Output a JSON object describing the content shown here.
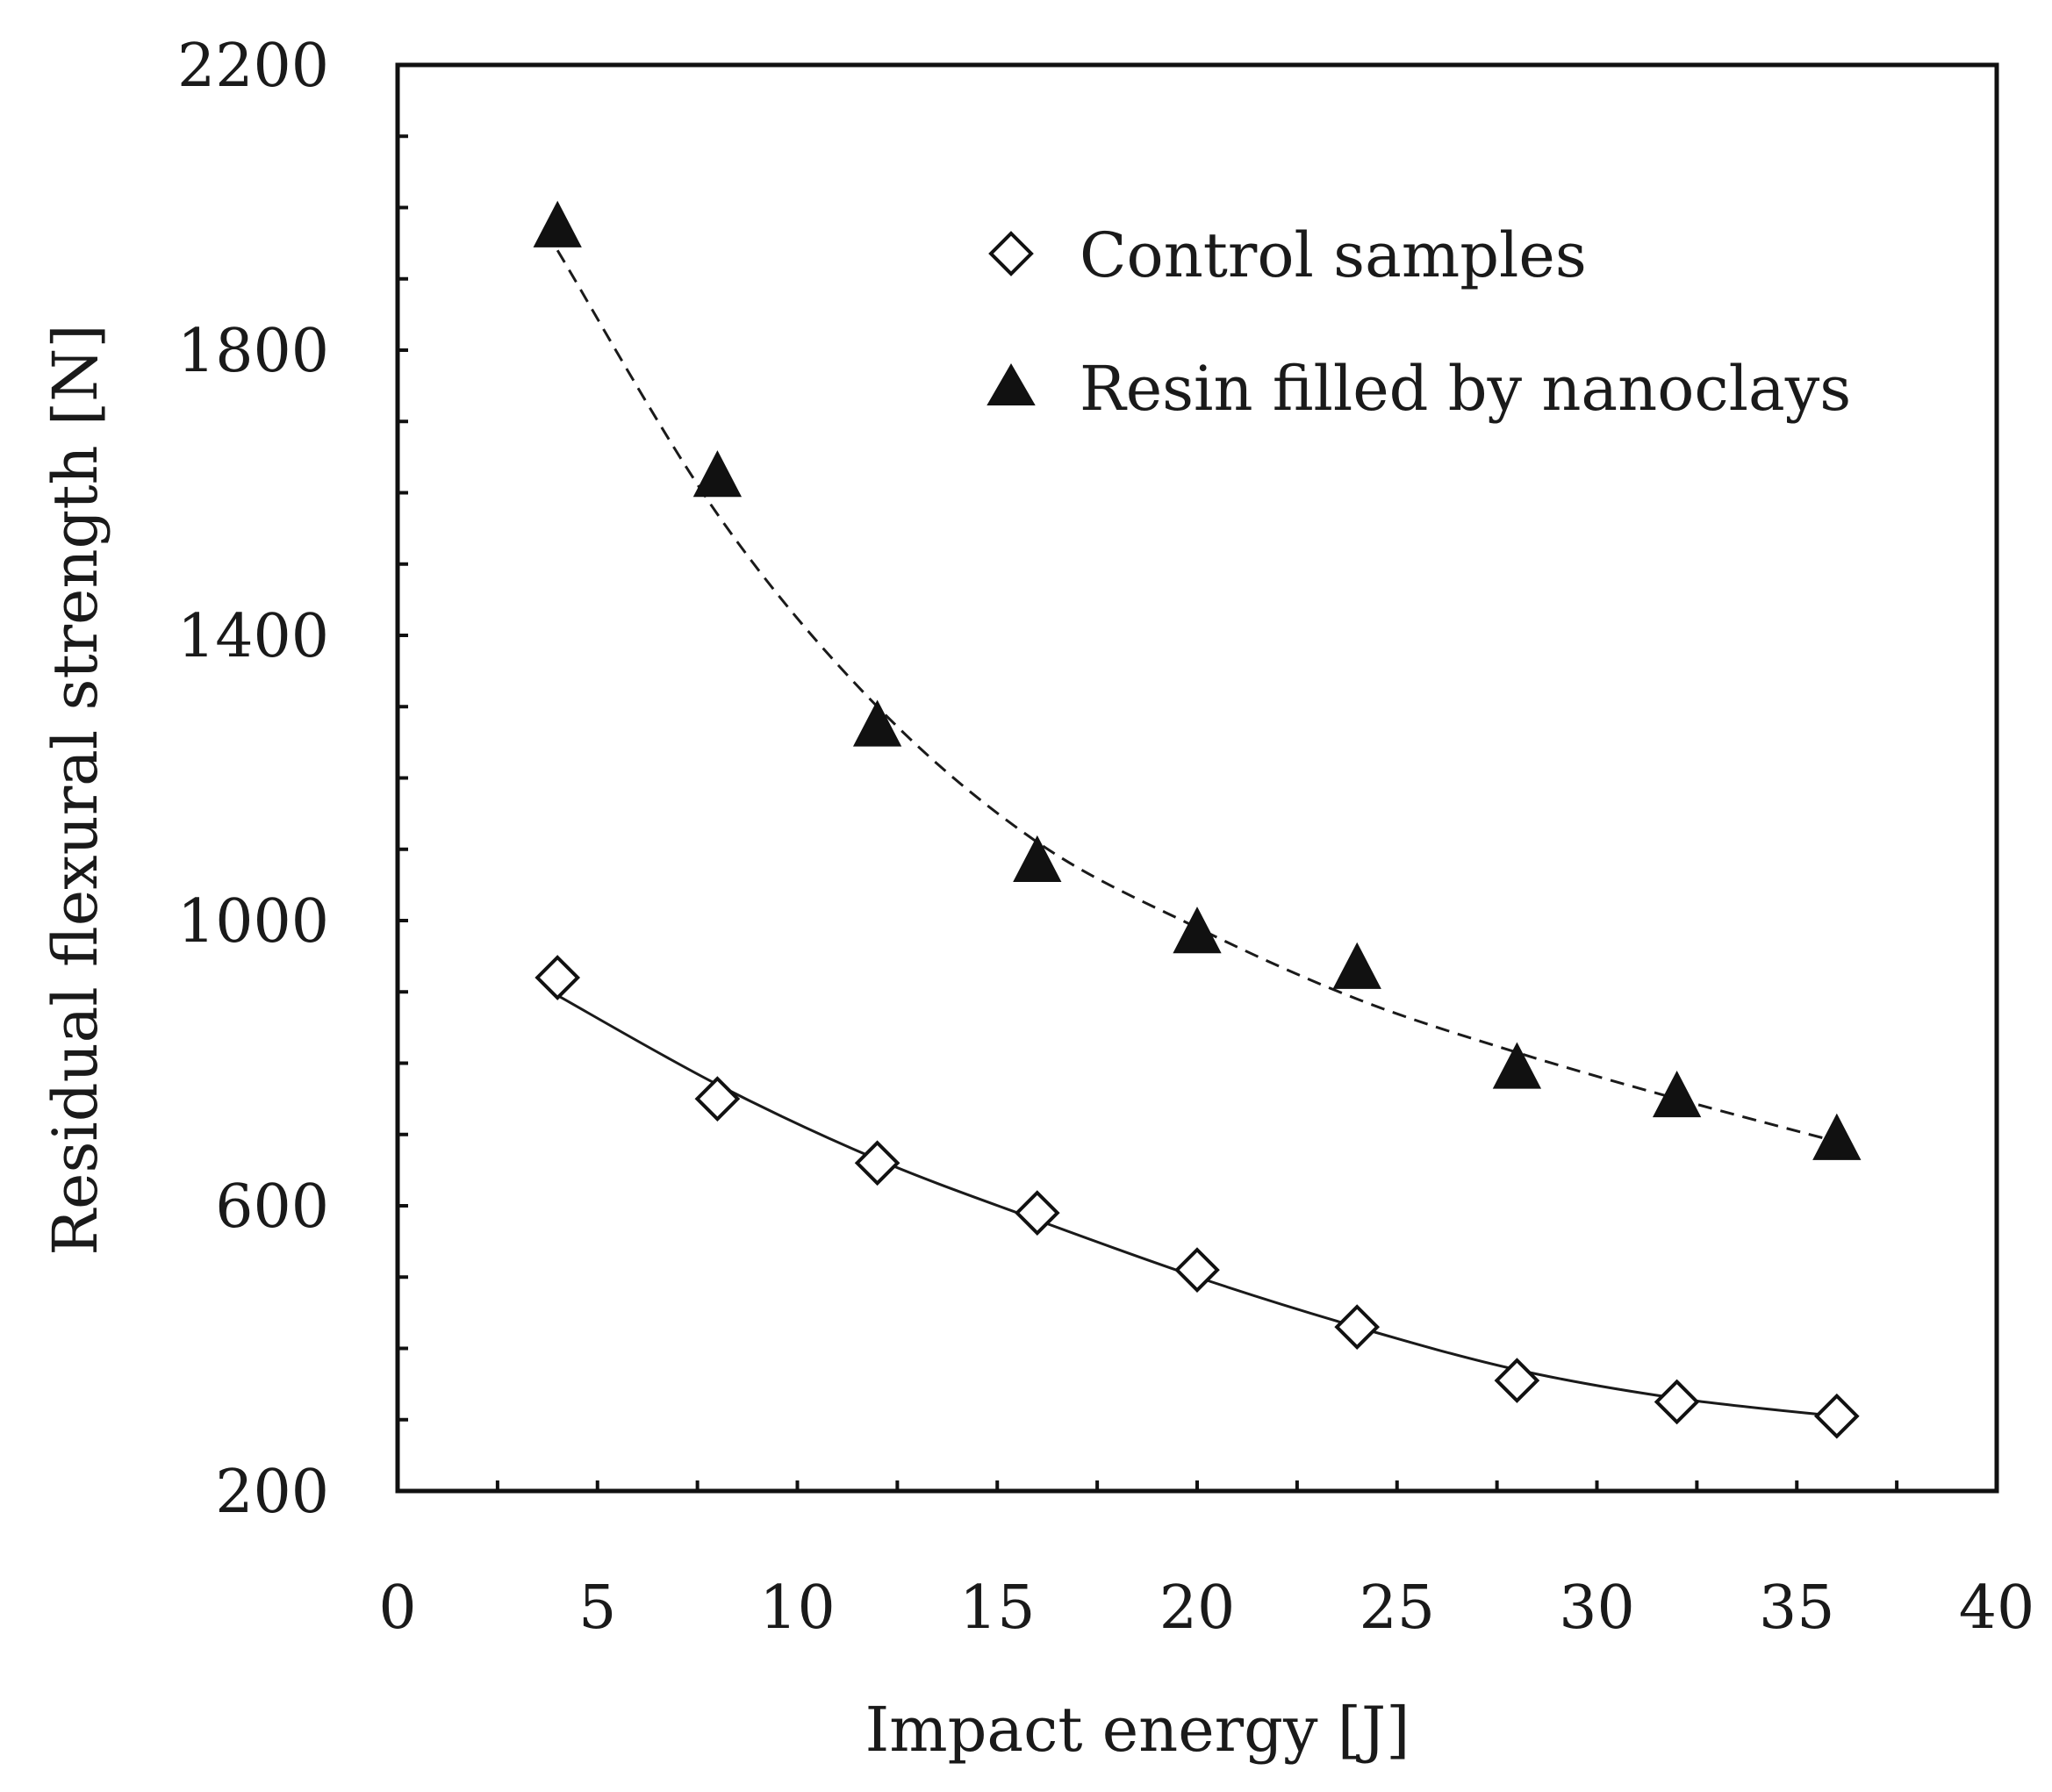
{
  "chart_data": {
    "type": "scatter",
    "xlabel": "Impact energy [J]",
    "ylabel": "Residual flexural strength [N]",
    "xlim": [
      0,
      40
    ],
    "ylim": [
      200,
      2200
    ],
    "x_ticks": [
      0,
      5,
      10,
      15,
      20,
      25,
      30,
      35,
      40
    ],
    "y_ticks": [
      200,
      600,
      1000,
      1400,
      1800,
      2200
    ],
    "x_tick_labels": [
      "0",
      "5",
      "10",
      "15",
      "20",
      "25",
      "30",
      "35",
      "40"
    ],
    "y_tick_labels": [
      "200",
      "600",
      "1000",
      "1400",
      "1800",
      "2200"
    ],
    "grid": false,
    "legend_position": "top-right",
    "series": [
      {
        "name": "Control samples",
        "marker": "open-diamond",
        "line_style": "solid",
        "x": [
          4,
          8,
          12,
          16,
          20,
          24,
          28,
          32,
          36
        ],
        "values": [
          920,
          750,
          660,
          590,
          510,
          430,
          355,
          325,
          305
        ],
        "fit_x": [
          4,
          8,
          12,
          16,
          20,
          24,
          28,
          32,
          36
        ],
        "fit_values": [
          895,
          770,
          665,
          580,
          500,
          430,
          370,
          330,
          305
        ]
      },
      {
        "name": "Resin filled by nanoclays",
        "marker": "filled-triangle",
        "line_style": "dashed",
        "x": [
          4,
          8,
          12,
          16,
          20,
          24,
          28,
          32,
          36
        ],
        "values": [
          1970,
          1620,
          1270,
          1080,
          980,
          930,
          790,
          750,
          690
        ],
        "fit_x": [
          4,
          8,
          12,
          16,
          20,
          24,
          28,
          32,
          36
        ],
        "fit_values": [
          1940,
          1570,
          1300,
          1110,
          990,
          890,
          815,
          750,
          690
        ]
      }
    ]
  }
}
